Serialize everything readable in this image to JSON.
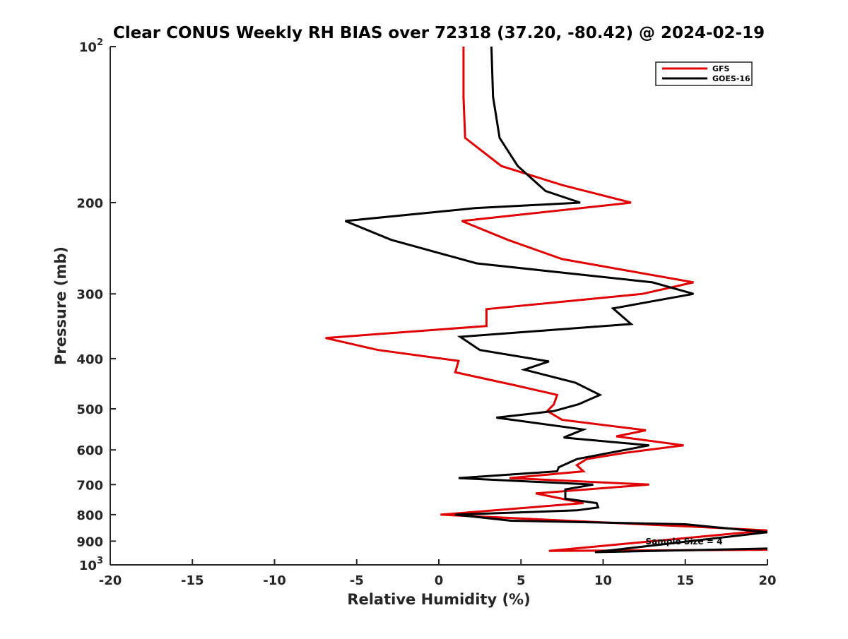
{
  "chart_data": {
    "type": "line",
    "title": "Clear CONUS Weekly RH BIAS over 72318 (37.20, -80.42) @ 2024-02-19",
    "xlabel": "Relative Humidity (%)",
    "ylabel": "Pressure (mb)",
    "xlim": [
      -20,
      20
    ],
    "ylim": [
      100,
      1000
    ],
    "y_scale": "log",
    "y_reversed": true,
    "grid": false,
    "legend_position": "top-right",
    "x_ticks": [
      -20,
      -15,
      -10,
      -5,
      0,
      5,
      10,
      15,
      20
    ],
    "x_tick_labels": [
      "-20",
      "-15",
      "-10",
      "-5",
      "0",
      "5",
      "10",
      "15",
      "20"
    ],
    "y_ticks": [
      {
        "value": 100,
        "base": "10",
        "exp": "2"
      },
      {
        "value": 200,
        "base": "200",
        "exp": ""
      },
      {
        "value": 300,
        "base": "300",
        "exp": ""
      },
      {
        "value": 400,
        "base": "400",
        "exp": ""
      },
      {
        "value": 500,
        "base": "500",
        "exp": ""
      },
      {
        "value": 600,
        "base": "600",
        "exp": ""
      },
      {
        "value": 700,
        "base": "700",
        "exp": ""
      },
      {
        "value": 800,
        "base": "800",
        "exp": ""
      },
      {
        "value": 900,
        "base": "900",
        "exp": ""
      },
      {
        "value": 1000,
        "base": "10",
        "exp": "3"
      }
    ],
    "series": [
      {
        "name": "GFS",
        "color": "#e00000",
        "points": [
          [
            1.5,
            100
          ],
          [
            1.5,
            125
          ],
          [
            1.6,
            150
          ],
          [
            3.8,
            170
          ],
          [
            7.5,
            185
          ],
          [
            11.7,
            200
          ],
          [
            1.4,
            217
          ],
          [
            4.2,
            236
          ],
          [
            7.5,
            257
          ],
          [
            15.5,
            285
          ],
          [
            12.4,
            300
          ],
          [
            2.9,
            321
          ],
          [
            2.9,
            346
          ],
          [
            -6.9,
            365
          ],
          [
            -3.7,
            385
          ],
          [
            1.2,
            404
          ],
          [
            1.0,
            425
          ],
          [
            4.6,
            450
          ],
          [
            7.2,
            470
          ],
          [
            7.0,
            490
          ],
          [
            6.6,
            505
          ],
          [
            7.5,
            525
          ],
          [
            12.6,
            550
          ],
          [
            10.8,
            565
          ],
          [
            14.9,
            588
          ],
          [
            11.3,
            608
          ],
          [
            9.0,
            625
          ],
          [
            8.4,
            642
          ],
          [
            8.8,
            660
          ],
          [
            4.3,
            680
          ],
          [
            12.8,
            700
          ],
          [
            5.9,
            728
          ],
          [
            8.8,
            760
          ],
          [
            0.1,
            800
          ],
          [
            17.5,
            850
          ],
          [
            20.0,
            858
          ],
          [
            6.7,
            940
          ],
          [
            20.0,
            935
          ]
        ]
      },
      {
        "name": "GOES-16",
        "color": "#000000",
        "points": [
          [
            3.2,
            100
          ],
          [
            3.3,
            125
          ],
          [
            3.7,
            150
          ],
          [
            4.8,
            170
          ],
          [
            6.5,
            190
          ],
          [
            8.6,
            200
          ],
          [
            2.2,
            205
          ],
          [
            -5.7,
            217
          ],
          [
            -2.9,
            236
          ],
          [
            2.3,
            262
          ],
          [
            13.0,
            285
          ],
          [
            15.5,
            300
          ],
          [
            10.6,
            320
          ],
          [
            11.7,
            343
          ],
          [
            1.3,
            363
          ],
          [
            2.5,
            385
          ],
          [
            6.7,
            405
          ],
          [
            5.2,
            420
          ],
          [
            8.3,
            445
          ],
          [
            9.8,
            470
          ],
          [
            8.5,
            490
          ],
          [
            7.0,
            505
          ],
          [
            3.5,
            520
          ],
          [
            8.8,
            548
          ],
          [
            7.6,
            568
          ],
          [
            12.8,
            588
          ],
          [
            8.4,
            625
          ],
          [
            7.3,
            648
          ],
          [
            7.2,
            660
          ],
          [
            1.2,
            680
          ],
          [
            9.4,
            700
          ],
          [
            7.7,
            715
          ],
          [
            7.7,
            745
          ],
          [
            9.6,
            760
          ],
          [
            9.7,
            775
          ],
          [
            8.4,
            785
          ],
          [
            1.0,
            800
          ],
          [
            4.4,
            822
          ],
          [
            15.0,
            835
          ],
          [
            20.0,
            865
          ],
          [
            9.5,
            945
          ],
          [
            20.0,
            930
          ]
        ]
      }
    ],
    "annotation": "Sample Size = 4"
  }
}
